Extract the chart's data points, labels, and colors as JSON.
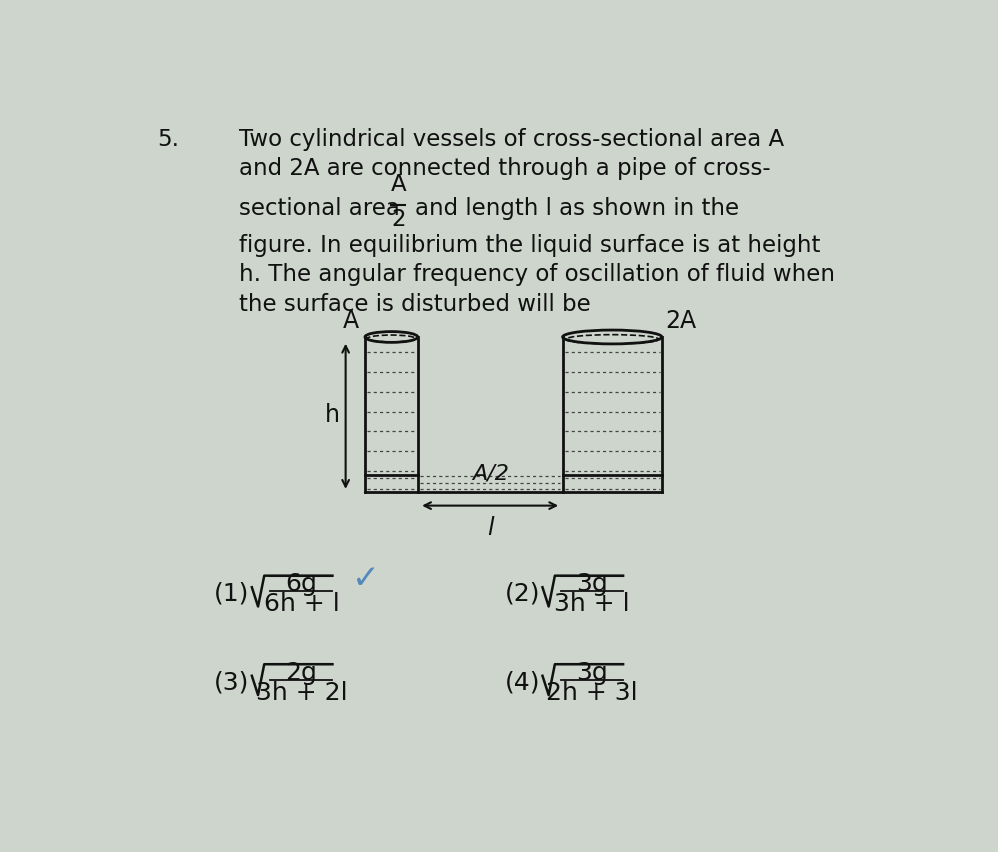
{
  "background_color": "#cdd5cc",
  "question_number": "5.",
  "text_line1": "Two cylindrical vessels of cross-sectional area A",
  "text_line2": "and 2A are connected through a pipe of cross-",
  "frac_prefix": "sectional area",
  "frac_numer": "A",
  "frac_denom": "2",
  "frac_suffix": "and length l as shown in the",
  "text_line4": "figure. In equilibrium the liquid surface is at height",
  "text_line5": "h. The angular frequency of oscillation of fluid when",
  "text_line6": "the surface is disturbed will be",
  "diagram": {
    "left_vessel_label": "A",
    "right_vessel_label": "2A",
    "pipe_label": "A/2",
    "height_label": "h",
    "length_label": "l"
  },
  "options": [
    {
      "num": "(1)",
      "numer": "6g",
      "denom": "6h + l",
      "correct": true
    },
    {
      "num": "(2)",
      "numer": "3g",
      "denom": "3h + l",
      "correct": false
    },
    {
      "num": "(3)",
      "numer": "2g",
      "denom": "3h + 2l",
      "correct": false
    },
    {
      "num": "(4)",
      "numer": "3g",
      "denom": "2h + 3l",
      "correct": false
    }
  ],
  "checkmark_color": "#5588bb",
  "text_color": "#111111",
  "line_color": "#111111",
  "dot_color": "#444444"
}
